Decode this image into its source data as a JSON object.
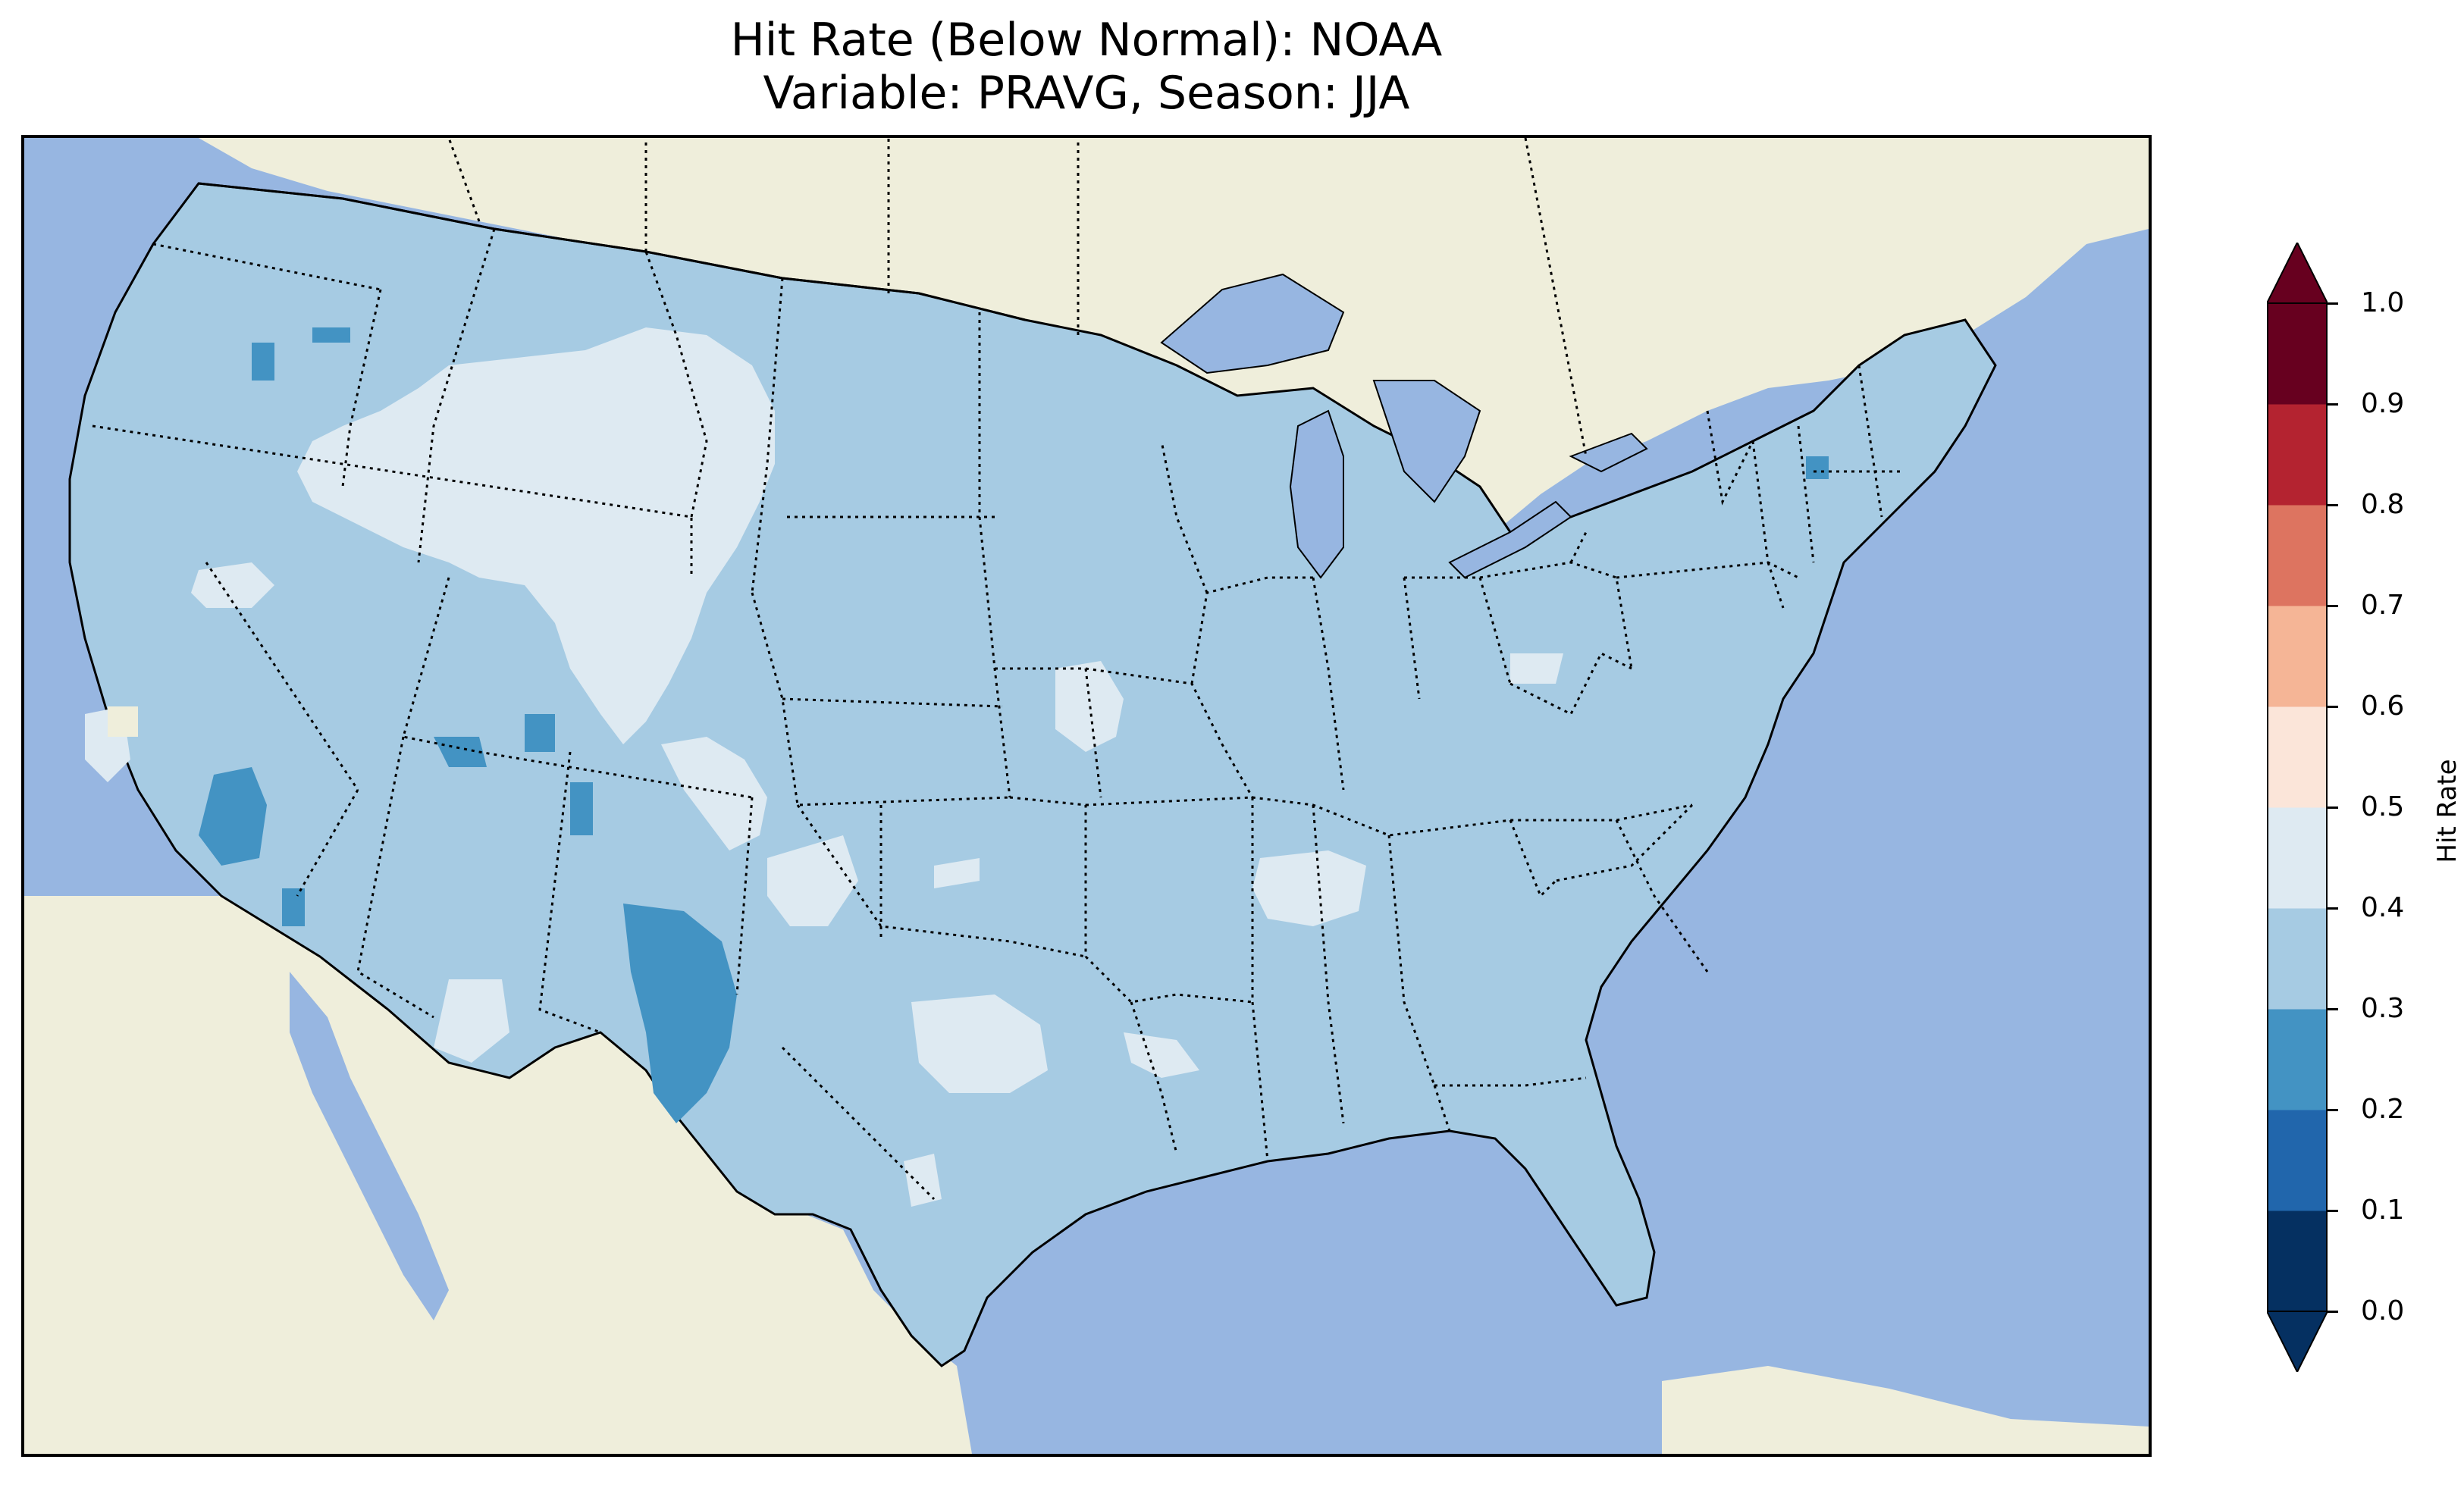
{
  "title": {
    "line1": "Hit Rate (Below Normal): NOAA",
    "line2": "Variable: PRAVG, Season: JJA"
  },
  "colors": {
    "ocean": "#97b6e1",
    "land": "#efeedb",
    "bin_0_1": "#053061",
    "bin_1_2": "#2166ac",
    "bin_2_3": "#4393c3",
    "bin_3_4": "#a6cbe3",
    "bin_4_5": "#deeaf2",
    "bin_5_6": "#fbe5d9",
    "bin_6_7": "#f5b596",
    "bin_7_8": "#dd7460",
    "bin_8_9": "#b42330",
    "bin_9_10": "#67001f"
  },
  "colorbar": {
    "label": "Hit Rate",
    "ticks": [
      "0.0",
      "0.1",
      "0.2",
      "0.3",
      "0.4",
      "0.5",
      "0.6",
      "0.7",
      "0.8",
      "0.9",
      "1.0"
    ],
    "extend": "both"
  },
  "map": {
    "region": "Contiguous United States",
    "dominant_class": "0.3-0.4",
    "icon": "us-states-outline-icon"
  }
}
